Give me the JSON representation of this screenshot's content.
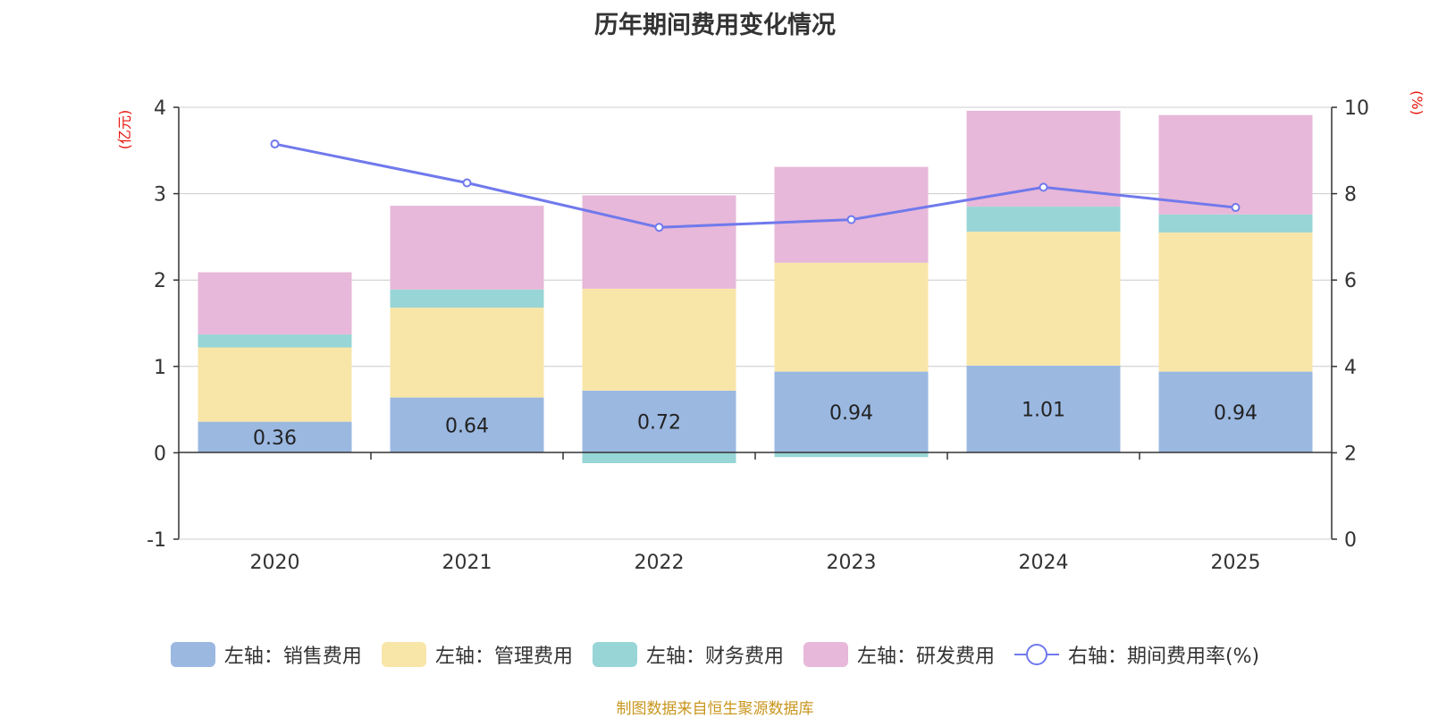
{
  "title": "历年期间费用变化情况",
  "source_note": "制图数据来自恒生聚源数据库",
  "colors": {
    "sales": "#9bb8e1",
    "admin": "#f8e6a8",
    "finance": "#98d5d6",
    "rd": "#e7b8d9",
    "rate_line": "#7079ec",
    "unit_text": "#e8130c",
    "source_text": "#c8961e"
  },
  "legend": [
    {
      "label": "左轴：销售费用",
      "color": "#9bb8e1",
      "icon": "swatch"
    },
    {
      "label": "左轴：管理费用",
      "color": "#f8e6a8",
      "icon": "swatch"
    },
    {
      "label": "左轴：财务费用",
      "color": "#98d5d6",
      "icon": "swatch"
    },
    {
      "label": "左轴：研发费用",
      "color": "#e7b8d9",
      "icon": "swatch"
    },
    {
      "label": "右轴：期间费用率(%)",
      "color": "#7079ec",
      "icon": "line-circle"
    }
  ],
  "chart_data": {
    "type": "bar",
    "stacked": true,
    "title": "历年期间费用变化情况",
    "categories": [
      "2020",
      "2021",
      "2022",
      "2023",
      "2024",
      "2025"
    ],
    "series": [
      {
        "name": "左轴：销售费用",
        "axis": "left",
        "values": [
          0.36,
          0.64,
          0.72,
          0.94,
          1.01,
          0.94
        ],
        "labels": [
          "0.36",
          "0.64",
          "0.72",
          "0.94",
          "1.01",
          "0.94"
        ]
      },
      {
        "name": "左轴：管理费用",
        "axis": "left",
        "values": [
          0.86,
          1.04,
          1.18,
          1.26,
          1.55,
          1.61
        ]
      },
      {
        "name": "左轴：财务费用",
        "axis": "left",
        "values": [
          0.15,
          0.21,
          -0.12,
          -0.05,
          0.29,
          0.21
        ]
      },
      {
        "name": "左轴：研发费用",
        "axis": "left",
        "values": [
          0.72,
          0.97,
          1.08,
          1.11,
          1.11,
          1.15
        ]
      },
      {
        "name": "右轴：期间费用率(%)",
        "axis": "right",
        "type": "line",
        "values": [
          9.15,
          8.25,
          7.22,
          7.4,
          8.15,
          7.68
        ]
      }
    ],
    "y_left": {
      "unit": "(亿元)",
      "range": [
        -1,
        4
      ],
      "ticks": [
        "-1",
        "0",
        "1",
        "2",
        "3",
        "4"
      ]
    },
    "y_right": {
      "unit": "(%)",
      "range": [
        0,
        10
      ],
      "ticks": [
        "0",
        "2",
        "4",
        "6",
        "8",
        "10"
      ]
    },
    "grid": true,
    "legend_position": "bottom"
  }
}
